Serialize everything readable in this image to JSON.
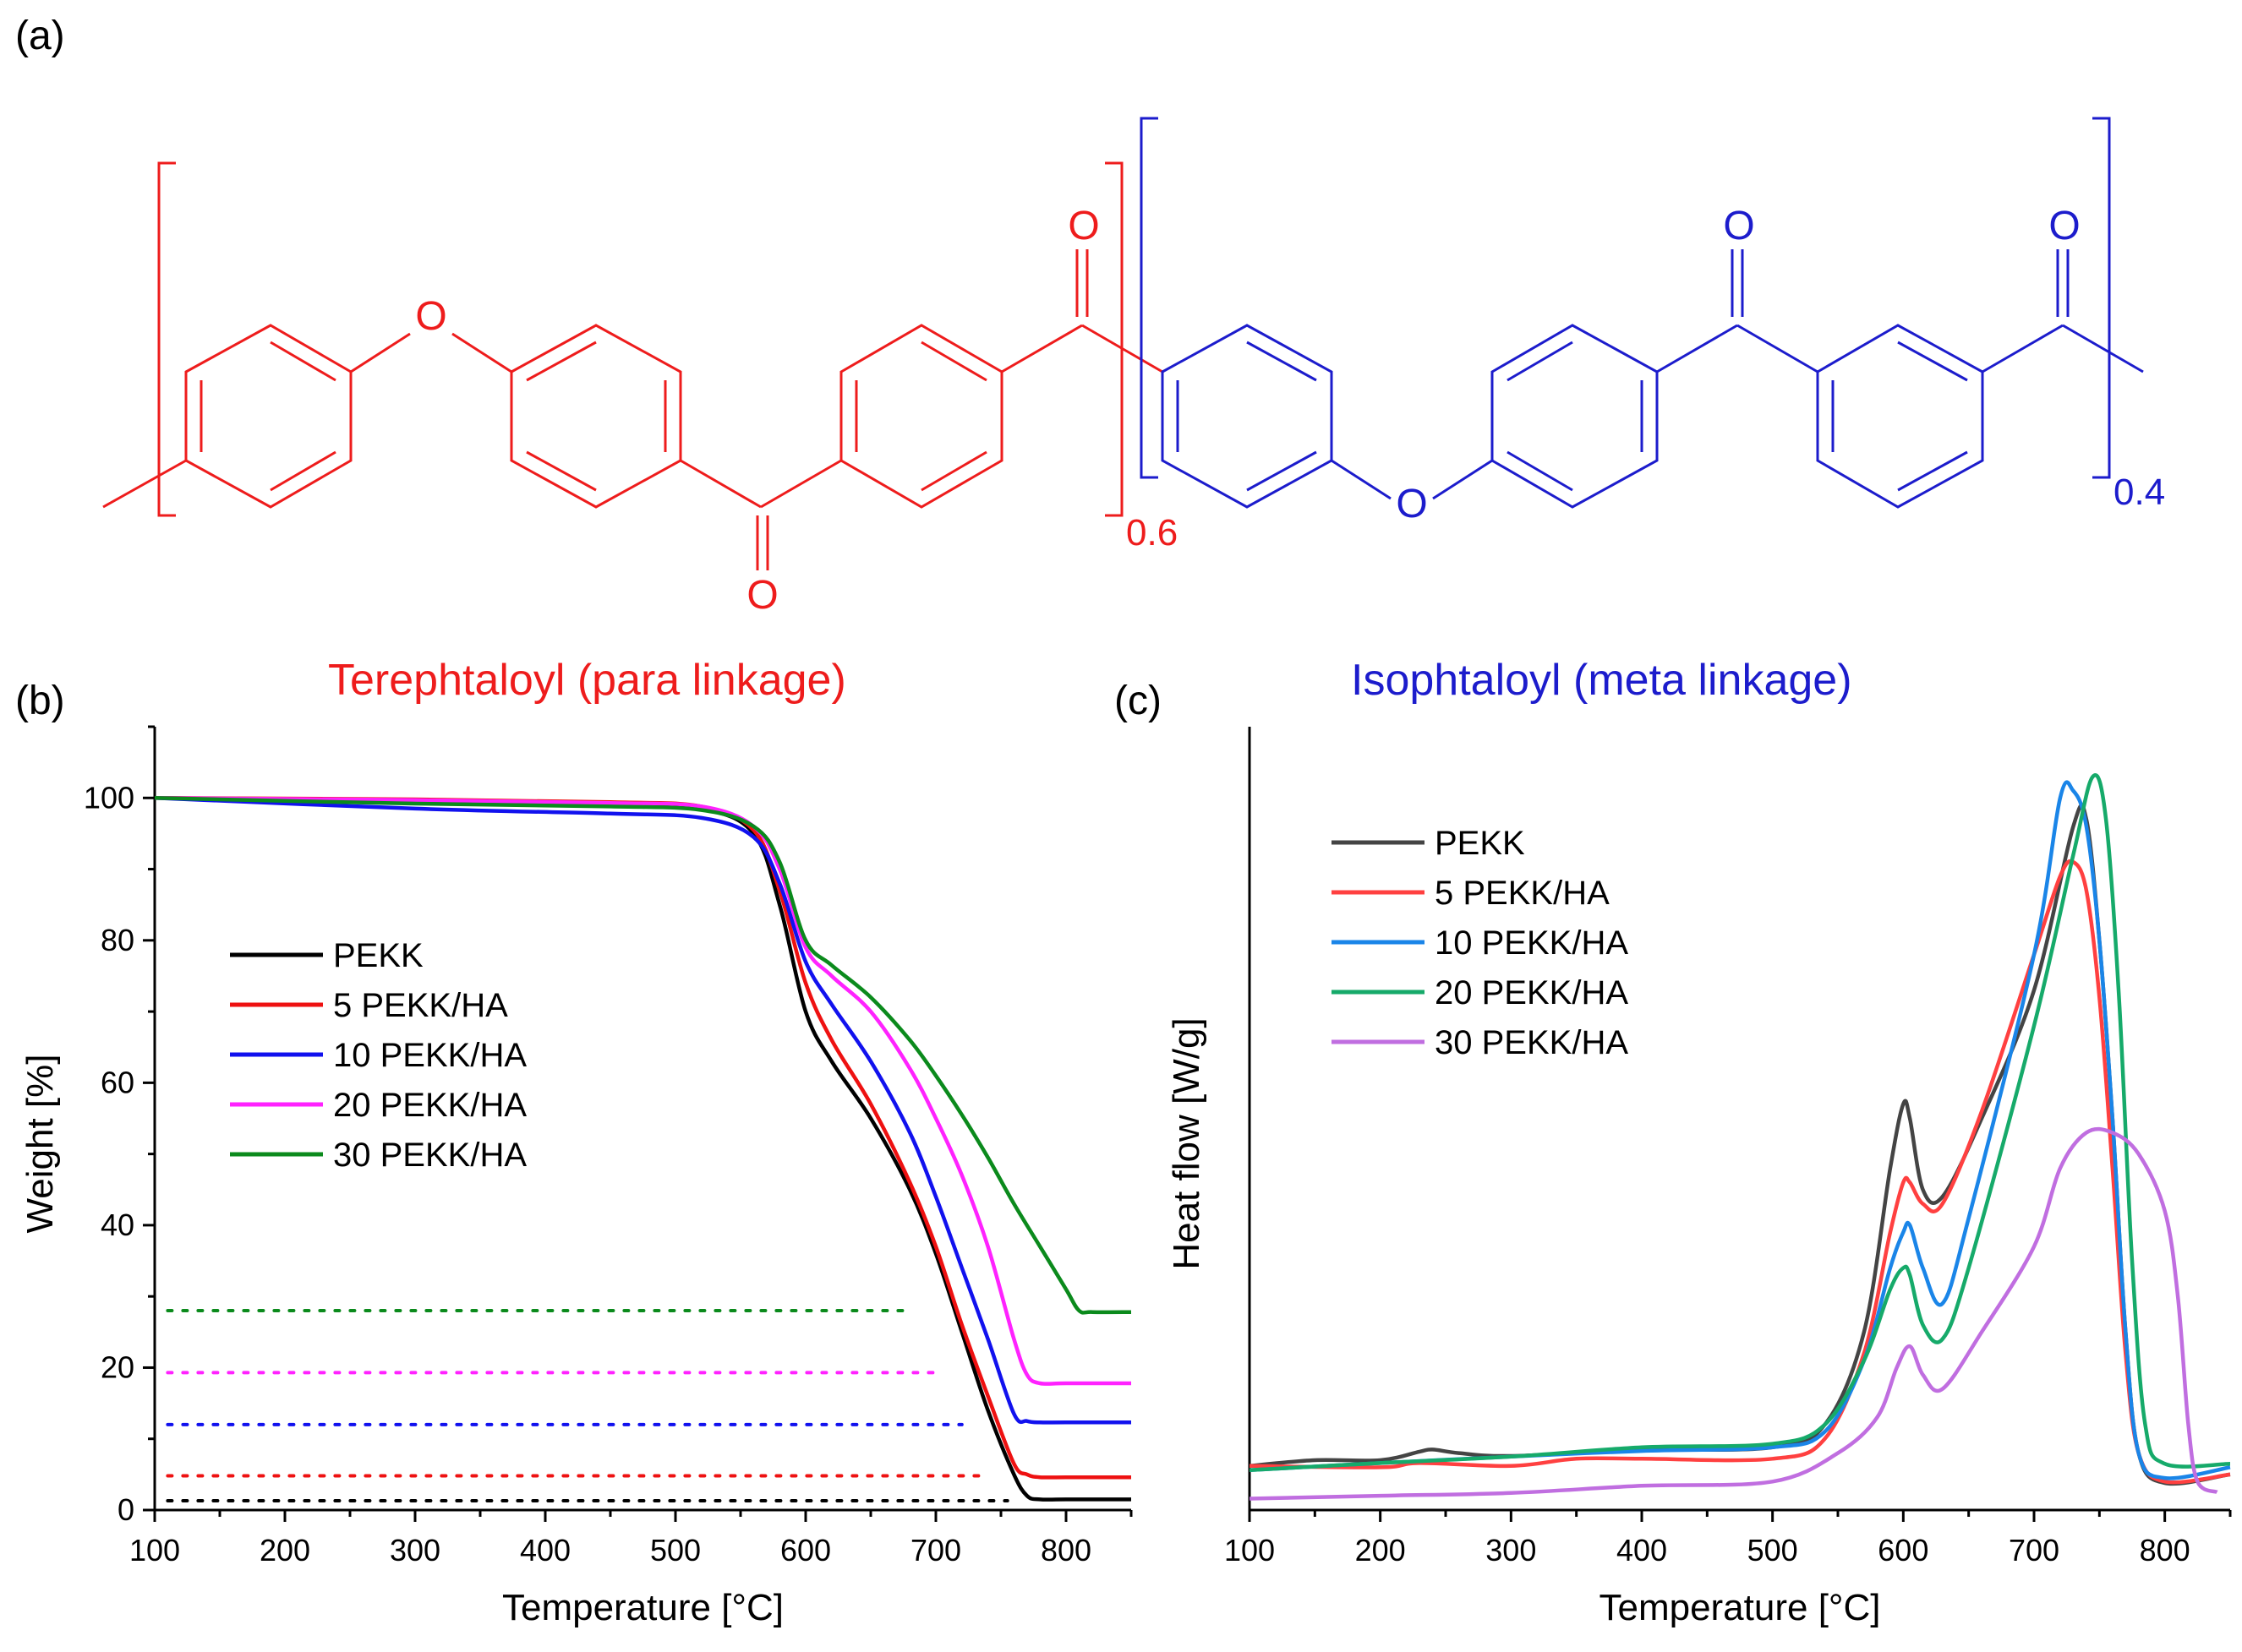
{
  "panels": {
    "a": {
      "label": "(a)"
    },
    "b": {
      "label": "(b)"
    },
    "c": {
      "label": "(c)"
    }
  },
  "structure": {
    "oxygen": "O",
    "para_subscript": "0.6",
    "meta_subscript": "0.4",
    "para_color": "#ee1c1c",
    "meta_color": "#1c1ccc",
    "para_title": "Terephtaloyl (para linkage)",
    "meta_title": "Isophtaloyl (meta linkage)"
  },
  "chart_data": [
    {
      "id": "tga",
      "type": "line",
      "title": "",
      "xlabel": "Temperature [°C]",
      "ylabel": "Weight [%]",
      "xlim": [
        100,
        850
      ],
      "ylim": [
        0,
        110
      ],
      "xticks": [
        100,
        200,
        300,
        400,
        500,
        600,
        700,
        800
      ],
      "yticks": [
        0,
        20,
        40,
        60,
        80,
        100
      ],
      "legend_position": "middle-left",
      "series": [
        {
          "name": "PEKK",
          "color": "#000000",
          "x": [
            100,
            300,
            450,
            520,
            560,
            580,
            600,
            620,
            650,
            680,
            700,
            720,
            740,
            760,
            770,
            780,
            800,
            850
          ],
          "y": [
            100,
            99.5,
            99.2,
            98.5,
            95,
            85,
            70,
            63,
            55,
            45,
            36,
            25,
            14,
            5,
            2,
            1.5,
            1.5,
            1.5
          ]
        },
        {
          "name": "5 PEKK/HA",
          "color": "#ee1111",
          "x": [
            100,
            300,
            450,
            520,
            560,
            580,
            600,
            620,
            650,
            680,
            700,
            720,
            740,
            760,
            770,
            780,
            800,
            850
          ],
          "y": [
            100,
            99.8,
            99.4,
            98.8,
            95.5,
            87,
            74,
            66,
            57,
            46,
            37,
            26,
            16,
            6.5,
            5,
            4.6,
            4.6,
            4.6
          ]
        },
        {
          "name": "10 PEKK/HA",
          "color": "#1111ee",
          "x": [
            100,
            300,
            450,
            520,
            560,
            580,
            600,
            620,
            650,
            680,
            700,
            720,
            740,
            760,
            770,
            780,
            800,
            850
          ],
          "y": [
            100,
            98.5,
            97.8,
            97.2,
            94.5,
            88,
            77,
            71,
            63,
            53,
            44,
            34,
            24,
            13.5,
            12.5,
            12.3,
            12.3,
            12.3
          ]
        },
        {
          "name": "20 PEKK/HA",
          "color": "#ff22ff",
          "x": [
            100,
            300,
            450,
            520,
            560,
            580,
            600,
            620,
            650,
            680,
            700,
            720,
            740,
            760,
            770,
            780,
            800,
            850
          ],
          "y": [
            100,
            99.7,
            99.3,
            98.8,
            96,
            90,
            79,
            75,
            70,
            62,
            55,
            47,
            37,
            24,
            19,
            17.8,
            17.8,
            17.8
          ]
        },
        {
          "name": "30 PEKK/HA",
          "color": "#0b8a1c",
          "x": [
            100,
            300,
            450,
            520,
            560,
            580,
            600,
            620,
            650,
            680,
            700,
            720,
            740,
            760,
            780,
            800,
            810,
            820,
            850
          ],
          "y": [
            100,
            99.2,
            98.8,
            98.3,
            96,
            91,
            80,
            76.5,
            72,
            66,
            61,
            55.5,
            49.5,
            43,
            37,
            31,
            28,
            27.8,
            27.8
          ]
        }
      ],
      "reference_lines": [
        {
          "y": 28,
          "x": [
            110,
            680
          ],
          "color": "#0b8a1c"
        },
        {
          "y": 19.3,
          "x": [
            110,
            700
          ],
          "color": "#ff22ff"
        },
        {
          "y": 12,
          "x": [
            110,
            720
          ],
          "color": "#1111ee"
        },
        {
          "y": 4.8,
          "x": [
            110,
            740
          ],
          "color": "#ee1111"
        },
        {
          "y": 1.3,
          "x": [
            110,
            755
          ],
          "color": "#000000"
        }
      ]
    },
    {
      "id": "dsc",
      "type": "line",
      "title": "",
      "xlabel": "Temperature [°C]",
      "ylabel": "Heat flow [W/g]",
      "xlim": [
        100,
        850
      ],
      "ylim": [
        0,
        110
      ],
      "xticks": [
        100,
        200,
        300,
        400,
        500,
        600,
        700,
        800
      ],
      "yticks": [],
      "legend_position": "top-left",
      "series": [
        {
          "name": "PEKK",
          "color": "#444444",
          "x": [
            100,
            150,
            200,
            230,
            240,
            260,
            300,
            400,
            500,
            540,
            570,
            590,
            600,
            605,
            615,
            630,
            660,
            700,
            730,
            740,
            750,
            760,
            770,
            780,
            800,
            850
          ],
          "y": [
            6.2,
            7,
            7,
            8.2,
            8.5,
            8,
            7.6,
            8.4,
            8.8,
            12,
            25,
            48,
            57,
            55,
            45,
            44,
            55,
            73,
            96,
            97,
            80,
            55,
            25,
            8,
            3.8,
            5
          ]
        },
        {
          "name": "5 PEKK/HA",
          "color": "#ff4040",
          "x": [
            100,
            200,
            230,
            300,
            350,
            400,
            500,
            540,
            570,
            590,
            600,
            605,
            615,
            630,
            660,
            700,
            720,
            730,
            740,
            750,
            760,
            770,
            780,
            800,
            850
          ],
          "y": [
            6.2,
            6,
            6.6,
            6.2,
            7.2,
            7.2,
            7.2,
            10,
            22,
            39,
            46,
            46,
            43,
            43,
            56,
            78,
            89,
            91,
            87,
            72,
            48,
            22,
            8,
            4,
            5
          ]
        },
        {
          "name": "10 PEKK/HA",
          "color": "#1a85e8",
          "x": [
            100,
            200,
            300,
            400,
            500,
            540,
            570,
            590,
            600,
            605,
            615,
            630,
            650,
            700,
            720,
            730,
            740,
            750,
            760,
            770,
            780,
            800,
            850
          ],
          "y": [
            5.6,
            6.6,
            7.5,
            8.3,
            8.8,
            11,
            21,
            34,
            39,
            40,
            34,
            29,
            41,
            78,
            100,
            101,
            96,
            80,
            55,
            25,
            8,
            4.5,
            6
          ]
        },
        {
          "name": "20 PEKK/HA",
          "color": "#16aa6a",
          "x": [
            100,
            200,
            300,
            400,
            500,
            540,
            570,
            590,
            600,
            605,
            615,
            630,
            650,
            700,
            730,
            745,
            755,
            765,
            775,
            785,
            800,
            850
          ],
          "y": [
            5.6,
            6.6,
            7.5,
            8.8,
            9.3,
            12,
            21,
            31,
            34,
            33,
            26,
            24,
            34,
            68,
            92,
            103,
            97,
            72,
            35,
            12,
            6.5,
            6.5
          ]
        },
        {
          "name": "30 PEKK/HA",
          "color": "#c06ee0",
          "x": [
            100,
            200,
            300,
            400,
            500,
            550,
            580,
            595,
            605,
            615,
            630,
            660,
            700,
            720,
            740,
            760,
            780,
            800,
            810,
            818,
            825,
            840
          ],
          "y": [
            1.6,
            2,
            2.4,
            3.4,
            4,
            8,
            13,
            20,
            23,
            19,
            17,
            25,
            37,
            48,
            53,
            53,
            50,
            42,
            30,
            12,
            4,
            2.5
          ]
        }
      ]
    }
  ]
}
